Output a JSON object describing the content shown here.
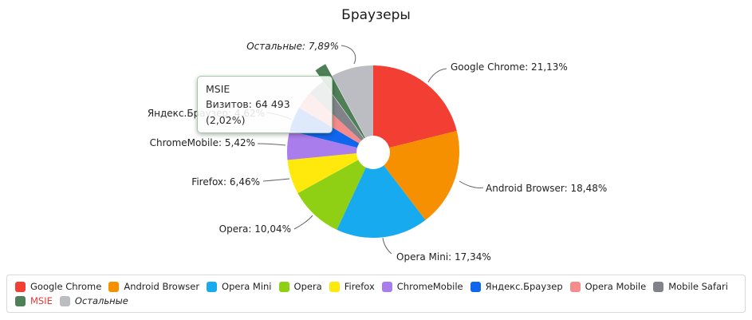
{
  "title": "Браузеры",
  "tooltip": {
    "title": "MSIE",
    "body": "Визитов: 64 493 (2,02%)"
  },
  "callouts": {
    "ostalnye": "Остальные: 7,89%",
    "google_chrome": "Google Chrome: 21,13%",
    "android_browser": "Android Browser: 18,48%",
    "opera_mini": "Opera Mini: 17,34%",
    "opera": "Opera: 10,04%",
    "firefox": "Firefox: 6,46%",
    "chromemobile": "ChromeMobile: 5,42%",
    "yandex_browser": "Яндекс.Браузер: 4,62%"
  },
  "chart_data": {
    "type": "pie",
    "title": "Браузеры",
    "donut": true,
    "start_angle_deg": 0,
    "legend_position": "bottom",
    "series": [
      {
        "name": "Google Chrome",
        "value": 21.13,
        "color": "#f23e33"
      },
      {
        "name": "Android Browser",
        "value": 18.48,
        "color": "#f79000"
      },
      {
        "name": "Opera Mini",
        "value": 17.34,
        "color": "#18aaef"
      },
      {
        "name": "Opera",
        "value": 10.04,
        "color": "#8fd014"
      },
      {
        "name": "Firefox",
        "value": 6.46,
        "color": "#ffe90c"
      },
      {
        "name": "ChromeMobile",
        "value": 5.42,
        "color": "#aa7dec"
      },
      {
        "name": "Яндекс.Браузер",
        "value": 4.62,
        "color": "#1166ee"
      },
      {
        "name": "Opera Mobile",
        "value": 3.37,
        "color": "#f58b8b"
      },
      {
        "name": "Mobile Safari",
        "value": 3.23,
        "color": "#82828a"
      },
      {
        "name": "MSIE",
        "value": 2.02,
        "color": "#4e7f57",
        "visits": "64 493",
        "highlighted": true
      },
      {
        "name": "Остальные",
        "value": 7.89,
        "color": "#bcbcc3",
        "italic": true
      }
    ]
  }
}
